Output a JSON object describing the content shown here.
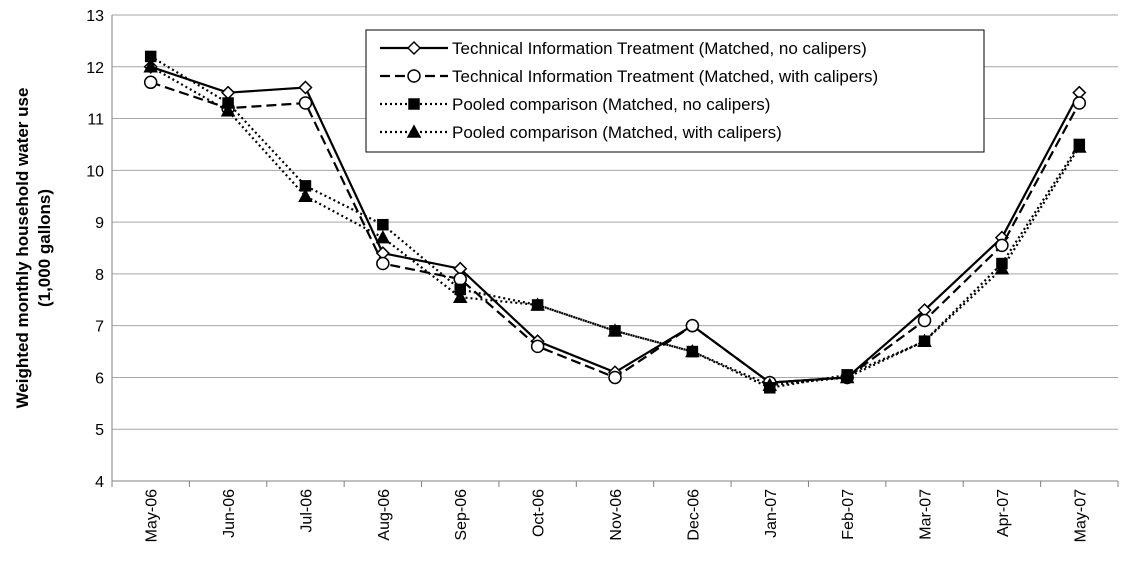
{
  "chart_data": {
    "type": "line",
    "y_label": [
      "Weighted monthly household water use",
      "(1,000 gallons)"
    ],
    "categories": [
      "May-06",
      "Jun-06",
      "Jul-06",
      "Aug-06",
      "Sep-06",
      "Oct-06",
      "Nov-06",
      "Dec-06",
      "Jan-07",
      "Feb-07",
      "Mar-07",
      "Apr-07",
      "May-07"
    ],
    "series": [
      {
        "name": "Technical Information Treatment (Matched, no calipers)",
        "color": "#000000",
        "dash": "solid",
        "marker": "diamond",
        "values": [
          12.0,
          11.5,
          11.6,
          8.4,
          8.1,
          6.7,
          6.1,
          7.0,
          5.9,
          6.0,
          7.3,
          8.7,
          11.5
        ]
      },
      {
        "name": "Technical Information Treatment (Matched, with calipers)",
        "color": "#000000",
        "dash": "dashed",
        "marker": "circle",
        "values": [
          11.7,
          11.2,
          11.3,
          8.2,
          7.9,
          6.6,
          6.0,
          7.0,
          5.9,
          6.0,
          7.1,
          8.55,
          11.3
        ]
      },
      {
        "name": "Pooled comparison (Matched, no calipers)",
        "color": "#000000",
        "dash": "dotted",
        "marker": "square",
        "values": [
          12.2,
          11.3,
          9.7,
          8.95,
          7.7,
          7.4,
          6.9,
          6.5,
          5.8,
          6.05,
          6.7,
          8.2,
          10.5
        ]
      },
      {
        "name": "Pooled comparison (Matched, with calipers)",
        "color": "#000000",
        "dash": "dotted",
        "marker": "triangle",
        "values": [
          12.0,
          11.15,
          9.5,
          8.7,
          7.55,
          7.4,
          6.9,
          6.5,
          5.85,
          6.0,
          6.7,
          8.1,
          10.45
        ]
      }
    ],
    "ylim": [
      4,
      13
    ],
    "yticks": [
      4,
      5,
      6,
      7,
      8,
      9,
      10,
      11,
      12,
      13
    ],
    "grid": true,
    "legend": "top-center"
  }
}
